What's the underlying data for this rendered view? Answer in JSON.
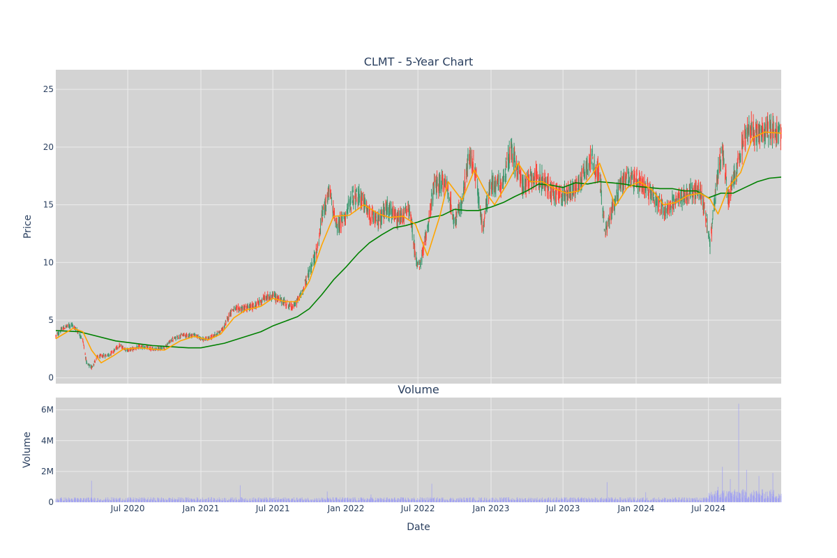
{
  "chart_data": [
    {
      "type": "candlestick",
      "title": "CLMT - 5-Year Chart",
      "ylabel": "Price",
      "xlabel": "",
      "ylim": [
        -0.5,
        26.7
      ],
      "y_ticks": [
        0,
        5,
        10,
        15,
        20,
        25
      ],
      "x_range": [
        "2020-01-02",
        "2024-12-31"
      ],
      "grid": true,
      "legend": "none",
      "colors": {
        "increasing": "#3d9970",
        "decreasing": "#ff4136",
        "ma_short": "orange",
        "ma_long": "green",
        "background": "#d3d3d3",
        "grid": "#ececec"
      },
      "price_anchors": [
        [
          "2020-01-02",
          3.6
        ],
        [
          "2020-01-20",
          4.3
        ],
        [
          "2020-02-10",
          4.6
        ],
        [
          "2020-02-25",
          4.1
        ],
        [
          "2020-03-10",
          3.3
        ],
        [
          "2020-03-20",
          1.2
        ],
        [
          "2020-04-01",
          0.9
        ],
        [
          "2020-04-15",
          1.8
        ],
        [
          "2020-05-15",
          2.0
        ],
        [
          "2020-06-10",
          2.8
        ],
        [
          "2020-07-01",
          2.4
        ],
        [
          "2020-08-01",
          2.7
        ],
        [
          "2020-09-01",
          2.5
        ],
        [
          "2020-10-01",
          2.6
        ],
        [
          "2020-10-20",
          3.3
        ],
        [
          "2020-11-15",
          3.7
        ],
        [
          "2020-12-15",
          3.7
        ],
        [
          "2021-01-10",
          3.3
        ],
        [
          "2021-02-01",
          3.6
        ],
        [
          "2021-02-25",
          4.2
        ],
        [
          "2021-03-20",
          5.9
        ],
        [
          "2021-04-15",
          6.0
        ],
        [
          "2021-05-15",
          6.2
        ],
        [
          "2021-06-10",
          6.9
        ],
        [
          "2021-07-01",
          7.1
        ],
        [
          "2021-08-01",
          6.5
        ],
        [
          "2021-08-20",
          6.1
        ],
        [
          "2021-09-10",
          7.2
        ],
        [
          "2021-10-01",
          9.2
        ],
        [
          "2021-10-20",
          11.0
        ],
        [
          "2021-11-05",
          14.5
        ],
        [
          "2021-11-20",
          16.2
        ],
        [
          "2021-12-10",
          13.0
        ],
        [
          "2022-01-01",
          14.2
        ],
        [
          "2022-01-20",
          15.8
        ],
        [
          "2022-02-10",
          15.5
        ],
        [
          "2022-03-01",
          14.2
        ],
        [
          "2022-03-20",
          13.5
        ],
        [
          "2022-04-15",
          14.8
        ],
        [
          "2022-05-10",
          13.6
        ],
        [
          "2022-06-10",
          14.6
        ],
        [
          "2022-06-25",
          10.5
        ],
        [
          "2022-07-05",
          9.5
        ],
        [
          "2022-07-20",
          12.0
        ],
        [
          "2022-08-10",
          16.5
        ],
        [
          "2022-09-10",
          17.0
        ],
        [
          "2022-10-01",
          13.5
        ],
        [
          "2022-10-20",
          15.0
        ],
        [
          "2022-11-05",
          19.0
        ],
        [
          "2022-11-20",
          18.5
        ],
        [
          "2022-12-10",
          13.0
        ],
        [
          "2023-01-01",
          16.8
        ],
        [
          "2023-02-01",
          17.0
        ],
        [
          "2023-02-20",
          19.8
        ],
        [
          "2023-03-10",
          18.0
        ],
        [
          "2023-03-25",
          16.5
        ],
        [
          "2023-04-15",
          17.5
        ],
        [
          "2023-05-15",
          17.0
        ],
        [
          "2023-06-10",
          16.0
        ],
        [
          "2023-07-01",
          15.8
        ],
        [
          "2023-07-20",
          16.2
        ],
        [
          "2023-08-10",
          16.8
        ],
        [
          "2023-09-10",
          19.2
        ],
        [
          "2023-10-01",
          17.5
        ],
        [
          "2023-10-15",
          12.5
        ],
        [
          "2023-11-01",
          14.5
        ],
        [
          "2023-11-20",
          16.5
        ],
        [
          "2023-12-10",
          17.5
        ],
        [
          "2024-01-10",
          16.8
        ],
        [
          "2024-02-10",
          16.0
        ],
        [
          "2024-03-10",
          14.5
        ],
        [
          "2024-04-10",
          15.3
        ],
        [
          "2024-05-10",
          16.0
        ],
        [
          "2024-06-10",
          16.2
        ],
        [
          "2024-06-25",
          14.0
        ],
        [
          "2024-07-05",
          11.5
        ],
        [
          "2024-07-20",
          16.5
        ],
        [
          "2024-08-05",
          20.0
        ],
        [
          "2024-08-20",
          15.5
        ],
        [
          "2024-09-10",
          18.0
        ],
        [
          "2024-10-01",
          21.0
        ],
        [
          "2024-10-20",
          21.5
        ],
        [
          "2024-11-10",
          21.0
        ],
        [
          "2024-12-01",
          21.8
        ],
        [
          "2024-12-31",
          21.0
        ]
      ],
      "ma_short": [
        [
          "2020-01-02",
          3.4
        ],
        [
          "2020-02-15",
          4.3
        ],
        [
          "2020-03-10",
          4.0
        ],
        [
          "2020-04-01",
          2.4
        ],
        [
          "2020-04-25",
          1.3
        ],
        [
          "2020-05-25",
          1.9
        ],
        [
          "2020-06-20",
          2.5
        ],
        [
          "2020-08-01",
          2.6
        ],
        [
          "2020-10-01",
          2.4
        ],
        [
          "2020-11-10",
          3.2
        ],
        [
          "2020-12-15",
          3.6
        ],
        [
          "2021-01-20",
          3.3
        ],
        [
          "2021-02-20",
          3.8
        ],
        [
          "2021-03-25",
          5.2
        ],
        [
          "2021-04-25",
          5.9
        ],
        [
          "2021-06-01",
          6.2
        ],
        [
          "2021-07-01",
          6.9
        ],
        [
          "2021-08-01",
          6.6
        ],
        [
          "2021-09-01",
          6.6
        ],
        [
          "2021-10-01",
          8.4
        ],
        [
          "2021-11-01",
          11.5
        ],
        [
          "2021-12-01",
          14.0
        ],
        [
          "2022-01-10",
          14.1
        ],
        [
          "2022-02-15",
          15.0
        ],
        [
          "2022-03-25",
          14.2
        ],
        [
          "2022-04-20",
          13.9
        ],
        [
          "2022-05-25",
          14.0
        ],
        [
          "2022-06-25",
          13.3
        ],
        [
          "2022-07-25",
          10.6
        ],
        [
          "2022-08-25",
          14.0
        ],
        [
          "2022-09-15",
          17.0
        ],
        [
          "2022-10-20",
          15.4
        ],
        [
          "2022-11-20",
          18.0
        ],
        [
          "2022-12-20",
          16.0
        ],
        [
          "2023-01-10",
          15.0
        ],
        [
          "2023-02-10",
          16.8
        ],
        [
          "2023-03-10",
          18.6
        ],
        [
          "2023-04-10",
          17.0
        ],
        [
          "2023-05-10",
          17.0
        ],
        [
          "2023-06-10",
          16.4
        ],
        [
          "2023-07-10",
          16.0
        ],
        [
          "2023-08-10",
          16.2
        ],
        [
          "2023-09-10",
          17.5
        ],
        [
          "2023-10-01",
          18.6
        ],
        [
          "2023-11-10",
          14.9
        ],
        [
          "2023-12-10",
          16.5
        ],
        [
          "2024-01-10",
          17.0
        ],
        [
          "2024-02-10",
          16.3
        ],
        [
          "2024-03-10",
          15.0
        ],
        [
          "2024-04-10",
          15.2
        ],
        [
          "2024-05-10",
          15.8
        ],
        [
          "2024-06-10",
          16.0
        ],
        [
          "2024-07-05",
          15.5
        ],
        [
          "2024-07-25",
          14.2
        ],
        [
          "2024-08-20",
          16.5
        ],
        [
          "2024-09-20",
          17.8
        ],
        [
          "2024-10-20",
          20.8
        ],
        [
          "2024-11-20",
          21.3
        ],
        [
          "2024-12-31",
          21.2
        ]
      ],
      "ma_long": [
        [
          "2020-01-02",
          4.1
        ],
        [
          "2020-03-01",
          4.0
        ],
        [
          "2020-06-01",
          3.2
        ],
        [
          "2020-09-01",
          2.8
        ],
        [
          "2020-12-01",
          2.6
        ],
        [
          "2021-01-01",
          2.6
        ],
        [
          "2021-03-01",
          3.0
        ],
        [
          "2021-06-01",
          4.0
        ],
        [
          "2021-07-01",
          4.5
        ],
        [
          "2021-09-01",
          5.3
        ],
        [
          "2021-10-01",
          6.0
        ],
        [
          "2021-11-01",
          7.2
        ],
        [
          "2021-12-01",
          8.5
        ],
        [
          "2022-01-01",
          9.6
        ],
        [
          "2022-02-01",
          10.8
        ],
        [
          "2022-03-01",
          11.7
        ],
        [
          "2022-04-01",
          12.4
        ],
        [
          "2022-05-01",
          13.0
        ],
        [
          "2022-06-01",
          13.2
        ],
        [
          "2022-07-01",
          13.5
        ],
        [
          "2022-08-01",
          13.9
        ],
        [
          "2022-09-01",
          14.1
        ],
        [
          "2022-10-01",
          14.6
        ],
        [
          "2022-11-01",
          14.5
        ],
        [
          "2022-12-01",
          14.5
        ],
        [
          "2023-01-01",
          14.8
        ],
        [
          "2023-02-01",
          15.2
        ],
        [
          "2023-03-01",
          15.7
        ],
        [
          "2023-04-01",
          16.2
        ],
        [
          "2023-05-01",
          16.8
        ],
        [
          "2023-06-01",
          16.7
        ],
        [
          "2023-07-01",
          16.5
        ],
        [
          "2023-08-01",
          16.9
        ],
        [
          "2023-09-01",
          16.8
        ],
        [
          "2023-10-01",
          17.0
        ],
        [
          "2023-11-01",
          16.9
        ],
        [
          "2023-12-01",
          16.8
        ],
        [
          "2024-01-01",
          16.6
        ],
        [
          "2024-02-01",
          16.5
        ],
        [
          "2024-03-01",
          16.4
        ],
        [
          "2024-04-01",
          16.4
        ],
        [
          "2024-05-01",
          16.2
        ],
        [
          "2024-06-01",
          16.2
        ],
        [
          "2024-07-01",
          15.6
        ],
        [
          "2024-08-01",
          16.0
        ],
        [
          "2024-09-01",
          16.0
        ],
        [
          "2024-10-01",
          16.5
        ],
        [
          "2024-11-01",
          17.0
        ],
        [
          "2024-12-01",
          17.3
        ],
        [
          "2024-12-31",
          17.4
        ]
      ]
    },
    {
      "type": "bar",
      "title": "Volume",
      "ylabel": "Volume",
      "xlabel": "Date",
      "ylim": [
        0,
        6800000
      ],
      "y_ticks": [
        0,
        2000000,
        4000000,
        6000000
      ],
      "y_tick_labels": [
        "0",
        "2M",
        "4M",
        "6M"
      ],
      "x_ticks": [
        "2020-07-01",
        "2021-01-01",
        "2021-07-01",
        "2022-01-01",
        "2022-07-01",
        "2023-01-01",
        "2023-07-01",
        "2024-01-01",
        "2024-07-01"
      ],
      "x_tick_labels": [
        "Jul 2020",
        "Jan 2021",
        "Jul 2021",
        "Jan 2022",
        "Jul 2022",
        "Jan 2023",
        "Jul 2023",
        "Jan 2024",
        "Jul 2024"
      ],
      "bar_color": "rgba(140,140,255,0.5)",
      "baseline_volume": 180000,
      "volume_spikes": [
        [
          "2020-04-01",
          1400000
        ],
        [
          "2021-04-10",
          1100000
        ],
        [
          "2021-11-15",
          700000
        ],
        [
          "2022-03-05",
          500000
        ],
        [
          "2022-08-05",
          1200000
        ],
        [
          "2023-10-20",
          1300000
        ],
        [
          "2024-01-25",
          650000
        ],
        [
          "2024-07-25",
          1000000
        ],
        [
          "2024-08-05",
          2300000
        ],
        [
          "2024-08-25",
          1500000
        ],
        [
          "2024-09-15",
          6400000
        ],
        [
          "2024-10-05",
          2100000
        ],
        [
          "2024-11-05",
          1700000
        ],
        [
          "2024-12-10",
          1900000
        ]
      ]
    }
  ]
}
